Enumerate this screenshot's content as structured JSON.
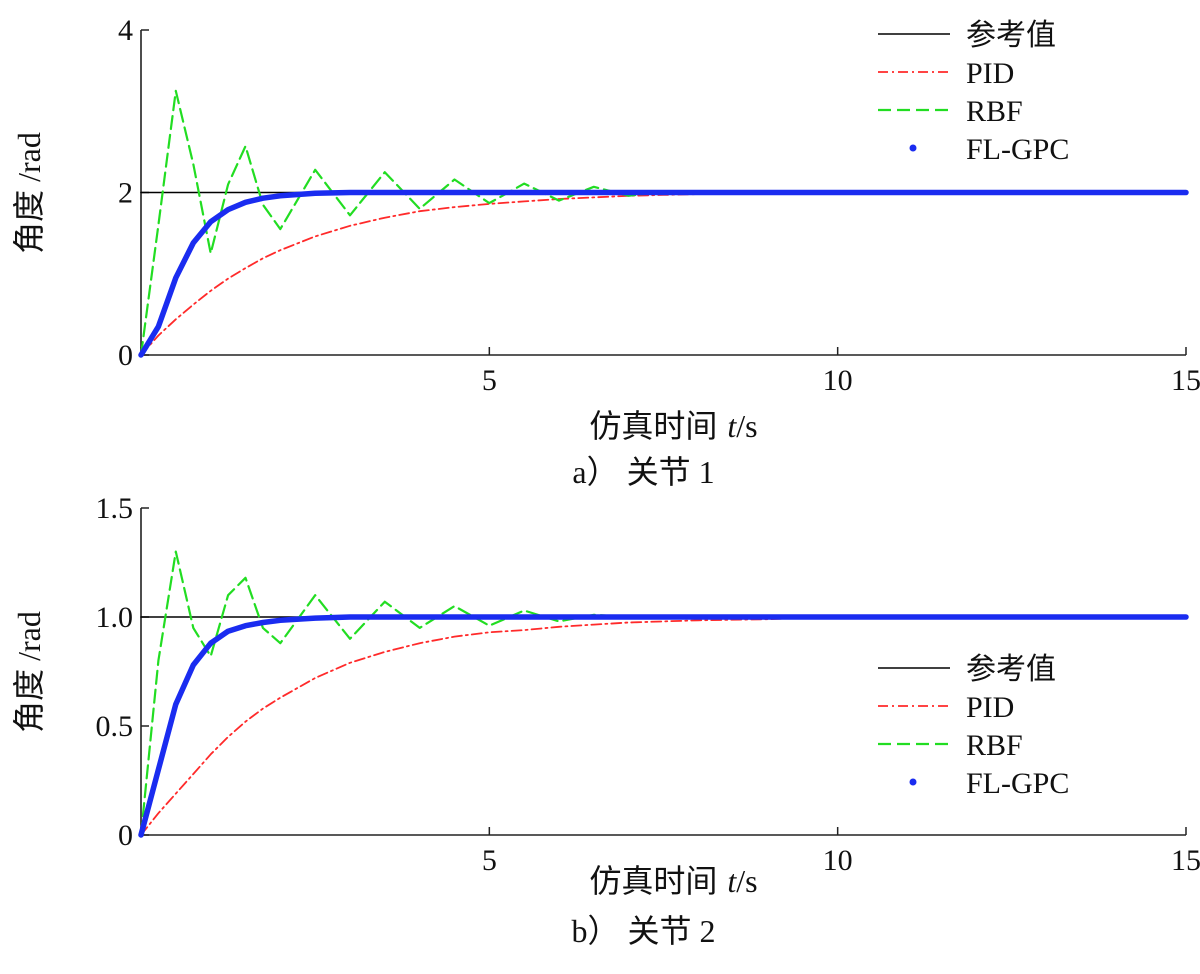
{
  "figure": {
    "panels": [
      {
        "caption": "a）  关节 1"
      },
      {
        "caption": "b）  关节 2"
      }
    ]
  },
  "colors": {
    "reference": "#000000",
    "pid": "#ff2a2a",
    "rbf": "#22dd22",
    "flgpc": "#1a2cf0",
    "axis": "#222222"
  },
  "chart_data": [
    {
      "type": "line",
      "title": "",
      "xlabel_prefix": "仿真时间",
      "xlabel_var": "t",
      "xlabel_unit": "/s",
      "ylabel": "角度 /rad",
      "xlim": [
        0,
        15
      ],
      "ylim": [
        0,
        4
      ],
      "xticks": [
        0,
        5,
        10,
        15
      ],
      "xtick_labels": [
        "",
        "5",
        "10",
        "15"
      ],
      "yticks": [
        0,
        2,
        4
      ],
      "ytick_labels": [
        "0",
        "2",
        "4"
      ],
      "grid": false,
      "legend_position": "top-right",
      "legend": [
        "参考值",
        "PID",
        "RBF",
        "FL-GPC"
      ],
      "x": [
        0,
        0.25,
        0.5,
        0.75,
        1.0,
        1.25,
        1.5,
        1.75,
        2.0,
        2.5,
        3.0,
        3.5,
        4.0,
        4.5,
        5.0,
        5.5,
        6.0,
        6.5,
        7.0,
        7.5,
        8.0,
        9.0,
        10.0,
        12.0,
        15.0
      ],
      "series": [
        {
          "name": "参考值",
          "style": "solid-thin",
          "values": [
            2,
            2,
            2,
            2,
            2,
            2,
            2,
            2,
            2,
            2,
            2,
            2,
            2,
            2,
            2,
            2,
            2,
            2,
            2,
            2,
            2,
            2,
            2,
            2,
            2
          ]
        },
        {
          "name": "PID",
          "style": "dashdot",
          "values": [
            0,
            0.24,
            0.44,
            0.62,
            0.79,
            0.94,
            1.07,
            1.19,
            1.29,
            1.46,
            1.59,
            1.69,
            1.77,
            1.82,
            1.86,
            1.89,
            1.92,
            1.94,
            1.96,
            1.97,
            1.98,
            1.99,
            2.0,
            2.0,
            2.0
          ]
        },
        {
          "name": "RBF",
          "style": "dashed",
          "values": [
            0,
            1.6,
            3.25,
            2.35,
            1.25,
            2.1,
            2.57,
            1.85,
            1.55,
            2.28,
            1.72,
            2.25,
            1.8,
            2.16,
            1.87,
            2.11,
            1.9,
            2.07,
            1.96,
            2.01,
            2.0,
            2.0,
            2.0,
            2.0,
            2.0
          ]
        },
        {
          "name": "FL-GPC",
          "style": "thick",
          "values": [
            0,
            0.35,
            0.95,
            1.38,
            1.64,
            1.79,
            1.88,
            1.93,
            1.96,
            1.99,
            2.0,
            2.0,
            2.0,
            2.0,
            2.0,
            2.0,
            2.0,
            2.0,
            2.0,
            2.0,
            2.0,
            2.0,
            2.0,
            2.0,
            2.0
          ]
        }
      ]
    },
    {
      "type": "line",
      "title": "",
      "xlabel_prefix": "仿真时间",
      "xlabel_var": "t",
      "xlabel_unit": "/s",
      "ylabel": "角度 /rad",
      "xlim": [
        0,
        15
      ],
      "ylim": [
        0,
        1.5
      ],
      "xticks": [
        0,
        5,
        10,
        15
      ],
      "xtick_labels": [
        "",
        "5",
        "10",
        "15"
      ],
      "yticks": [
        0,
        0.5,
        1.0,
        1.5
      ],
      "ytick_labels": [
        "0",
        "0.5",
        "1.0",
        "1.5"
      ],
      "grid": false,
      "legend_position": "center-right",
      "legend": [
        "参考值",
        "PID",
        "RBF",
        "FL-GPC"
      ],
      "x": [
        0,
        0.25,
        0.5,
        0.75,
        1.0,
        1.25,
        1.5,
        1.75,
        2.0,
        2.5,
        3.0,
        3.5,
        4.0,
        4.5,
        5.0,
        5.5,
        6.0,
        6.5,
        7.0,
        7.5,
        8.0,
        9.0,
        10.0,
        12.0,
        15.0
      ],
      "series": [
        {
          "name": "参考值",
          "style": "solid-thin",
          "values": [
            1,
            1,
            1,
            1,
            1,
            1,
            1,
            1,
            1,
            1,
            1,
            1,
            1,
            1,
            1,
            1,
            1,
            1,
            1,
            1,
            1,
            1,
            1,
            1,
            1
          ]
        },
        {
          "name": "PID",
          "style": "dashdot",
          "values": [
            0,
            0.1,
            0.19,
            0.28,
            0.37,
            0.45,
            0.52,
            0.58,
            0.63,
            0.72,
            0.79,
            0.84,
            0.88,
            0.91,
            0.93,
            0.94,
            0.955,
            0.965,
            0.975,
            0.98,
            0.985,
            0.99,
            1.0,
            1.0,
            1.0
          ]
        },
        {
          "name": "RBF",
          "style": "dashed",
          "values": [
            0,
            0.8,
            1.3,
            0.95,
            0.82,
            1.1,
            1.18,
            0.95,
            0.88,
            1.1,
            0.9,
            1.07,
            0.95,
            1.05,
            0.96,
            1.03,
            0.98,
            1.01,
            1.0,
            1.0,
            1.0,
            1.0,
            1.0,
            1.0,
            1.0
          ]
        },
        {
          "name": "FL-GPC",
          "style": "thick",
          "values": [
            0,
            0.3,
            0.6,
            0.78,
            0.88,
            0.935,
            0.96,
            0.975,
            0.985,
            0.995,
            1.0,
            1.0,
            1.0,
            1.0,
            1.0,
            1.0,
            1.0,
            1.0,
            1.0,
            1.0,
            1.0,
            1.0,
            1.0,
            1.0,
            1.0
          ]
        }
      ]
    }
  ]
}
